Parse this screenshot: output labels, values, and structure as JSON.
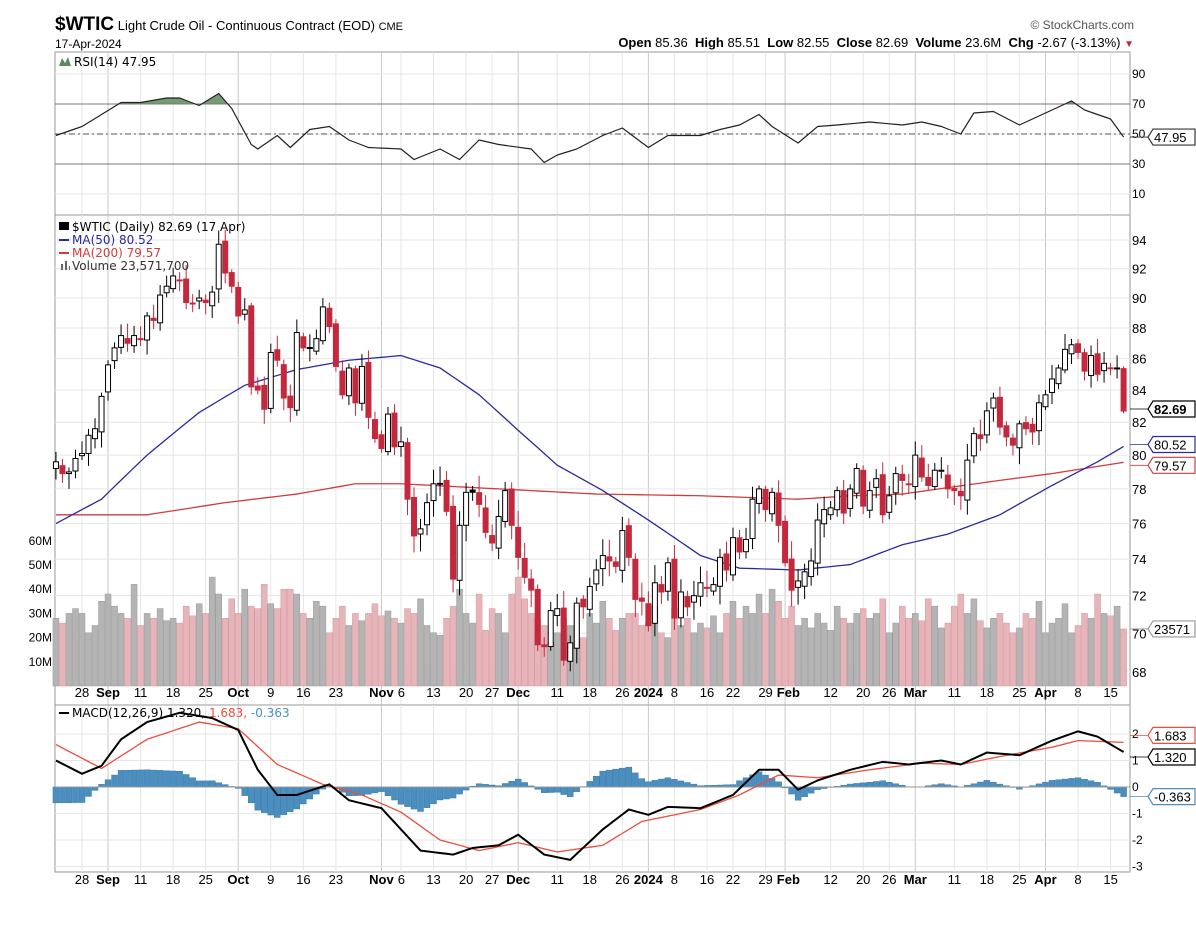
{
  "header": {
    "symbol": "$WTIC",
    "name": "Light Crude Oil - Continuous Contract (EOD)",
    "exchange": "CME",
    "date": "17-Apr-2024",
    "copyright": "© StockCharts.com",
    "open_label": "Open",
    "open": "85.36",
    "high_label": "High",
    "high": "85.51",
    "low_label": "Low",
    "low": "82.55",
    "close_label": "Close",
    "close": "82.69",
    "volume_label": "Volume",
    "volume": "23.6M",
    "chg_label": "Chg",
    "chg": "-2.67 (-3.13%)",
    "chg_icon": "triangle-down-icon"
  },
  "legends": {
    "rsi": "RSI(14) 47.95",
    "price": "$WTIC (Daily) 82.69 (17 Apr)",
    "ma50": "MA(50) 80.52",
    "ma200": "MA(200) 79.57",
    "volume": "Volume 23,571,700",
    "macd": "MACD(12,26,9)",
    "macd_val": "1.320",
    "signal_val": "1.683",
    "hist_val": "-0.363"
  },
  "colors": {
    "up": "#000000",
    "down": "#c4283c",
    "ma50": "#2a2a9c",
    "ma200": "#d23c3c",
    "vol_up": "#b4b4b4",
    "vol_down": "#e6b4b9",
    "hist": "#4a8fc0",
    "rsi_fill": "#5e8a5e",
    "macd": "#000000",
    "signal": "#ee4c3c"
  },
  "chart_data": {
    "type": "candlestick",
    "price_scale": "log",
    "price_ylim": [
      67,
      95
    ],
    "price_ticks": [
      94,
      92,
      90,
      88,
      86,
      84,
      82,
      80,
      78,
      76,
      74,
      72,
      70,
      68
    ],
    "volume_ticks": [
      {
        "v": 60,
        "label": "60M"
      },
      {
        "v": 50,
        "label": "50M"
      },
      {
        "v": 40,
        "label": "40M"
      },
      {
        "v": 30,
        "label": "30M"
      },
      {
        "v": 20,
        "label": "20M"
      },
      {
        "v": 10,
        "label": "10M"
      }
    ],
    "rsi_ticks": [
      90,
      70,
      50,
      30,
      10
    ],
    "macd_ticks": [
      {
        "v": 2,
        "label": "2"
      },
      {
        "v": 1,
        "label": "1"
      },
      {
        "v": 0,
        "label": "0"
      },
      {
        "v": -1,
        "label": "-1"
      },
      {
        "v": -2,
        "label": "-2"
      },
      {
        "v": -3,
        "label": "-3"
      }
    ],
    "x_ticks": [
      {
        "label": "28",
        "i": 4
      },
      {
        "label": "Sep",
        "i": 8,
        "major": true
      },
      {
        "label": "11",
        "i": 13
      },
      {
        "label": "18",
        "i": 18
      },
      {
        "label": "25",
        "i": 23
      },
      {
        "label": "Oct",
        "i": 28,
        "major": true
      },
      {
        "label": "9",
        "i": 33
      },
      {
        "label": "16",
        "i": 38
      },
      {
        "label": "23",
        "i": 43
      },
      {
        "label": "Nov",
        "i": 50,
        "major": true
      },
      {
        "label": "6",
        "i": 53
      },
      {
        "label": "13",
        "i": 58
      },
      {
        "label": "20",
        "i": 63
      },
      {
        "label": "27",
        "i": 67
      },
      {
        "label": "Dec",
        "i": 71,
        "major": true
      },
      {
        "label": "11",
        "i": 77
      },
      {
        "label": "18",
        "i": 82
      },
      {
        "label": "26",
        "i": 87
      },
      {
        "label": "2024",
        "i": 91,
        "major": true
      },
      {
        "label": "8",
        "i": 95
      },
      {
        "label": "16",
        "i": 100
      },
      {
        "label": "22",
        "i": 104
      },
      {
        "label": "29",
        "i": 109
      },
      {
        "label": "Feb",
        "i": 112,
        "major": true
      },
      {
        "label": "12",
        "i": 119
      },
      {
        "label": "20",
        "i": 124
      },
      {
        "label": "26",
        "i": 128
      },
      {
        "label": "Mar",
        "i": 132,
        "major": true
      },
      {
        "label": "11",
        "i": 138
      },
      {
        "label": "18",
        "i": 143
      },
      {
        "label": "25",
        "i": 148
      },
      {
        "label": "Apr",
        "i": 152,
        "major": true
      },
      {
        "label": "8",
        "i": 157
      },
      {
        "label": "15",
        "i": 162
      }
    ],
    "close": [
      79.6,
      78.9,
      79.0,
      79.8,
      80.1,
      81.2,
      81.6,
      83.6,
      85.6,
      86.7,
      87.5,
      87.0,
      87.5,
      87.3,
      88.8,
      88.5,
      90.2,
      90.8,
      91.5,
      91.2,
      89.7,
      89.6,
      90.0,
      89.7,
      90.4,
      93.7,
      91.7,
      90.8,
      88.8,
      89.2,
      84.2,
      84.0,
      82.8,
      86.4,
      85.9,
      83.5,
      82.9,
      87.7,
      86.7,
      86.7,
      87.3,
      89.4,
      88.1,
      85.5,
      83.7,
      85.4,
      83.2,
      85.5,
      82.3,
      81.0,
      80.4,
      82.5,
      80.5,
      80.8,
      77.4,
      75.3,
      75.7,
      77.2,
      78.3,
      78.3,
      76.7,
      72.9,
      75.9,
      77.8,
      77.8,
      77.1,
      75.5,
      74.9,
      76.4,
      77.9,
      75.9,
      74.1,
      73.0,
      72.3,
      69.4,
      69.3,
      71.2,
      71.3,
      68.6,
      69.5,
      71.6,
      71.4,
      72.5,
      73.4,
      74.2,
      73.9,
      73.6,
      75.6,
      74.1,
      71.8,
      71.7,
      70.4,
      72.7,
      72.2,
      73.8,
      70.8,
      72.2,
      71.4,
      72.0,
      72.7,
      72.4,
      72.6,
      74.1,
      73.4,
      75.2,
      74.4,
      75.1,
      77.4,
      78.0,
      76.8,
      77.8,
      75.9,
      73.8,
      72.3,
      72.8,
      73.3,
      73.9,
      76.2,
      76.8,
      76.9,
      77.9,
      76.6,
      78.0,
      79.2,
      77.0,
      77.9,
      78.6,
      76.5,
      77.6,
      78.9,
      78.5,
      78.3,
      80.0,
      78.7,
      78.2,
      79.1,
      79.1,
      78.0,
      77.9,
      77.6,
      79.7,
      81.3,
      81.0,
      82.7,
      83.5,
      81.7,
      81.1,
      80.6,
      81.9,
      81.6,
      81.4,
      83.2,
      83.7,
      84.7,
      85.4,
      86.6,
      86.9,
      86.4,
      85.2,
      86.2,
      85.0,
      85.7,
      85.4,
      85.4,
      82.69
    ],
    "last_ohlc": {
      "open": 85.36,
      "high": 85.51,
      "low": 82.55,
      "close": 82.69
    },
    "volume_m": [
      28,
      26,
      30,
      32,
      30,
      22,
      25,
      35,
      38,
      33,
      30,
      28,
      42,
      25,
      30,
      28,
      32,
      27,
      28,
      26,
      33,
      29,
      34,
      30,
      45,
      38,
      28,
      36,
      30,
      40,
      33,
      32,
      42,
      34,
      32,
      40,
      40,
      38,
      30,
      28,
      35,
      33,
      22,
      28,
      33,
      25,
      30,
      27,
      30,
      34,
      29,
      31,
      28,
      26,
      32,
      30,
      36,
      25,
      22,
      21,
      28,
      33,
      40,
      30,
      26,
      38,
      23,
      32,
      30,
      22,
      38,
      45,
      36,
      30,
      28,
      25,
      18,
      22,
      28,
      25,
      33,
      20,
      30,
      26,
      35,
      28,
      23,
      28,
      30,
      30,
      25,
      26,
      33,
      22,
      20,
      32,
      25,
      28,
      22,
      26,
      24,
      29,
      22,
      30,
      35,
      28,
      33,
      30,
      38,
      30,
      40,
      35,
      28,
      33,
      25,
      28,
      24,
      30,
      26,
      23,
      33,
      28,
      26,
      30,
      32,
      28,
      30,
      36,
      22,
      26,
      33,
      28,
      30,
      27,
      36,
      33,
      24,
      26,
      33,
      38,
      30,
      36,
      27,
      24,
      28,
      30,
      26,
      22,
      24,
      30,
      28,
      35,
      22,
      26,
      28,
      34,
      22,
      25,
      30,
      28,
      38,
      30,
      29,
      33,
      23.57
    ],
    "ma50": [
      [
        0,
        76.0
      ],
      [
        7,
        77.4
      ],
      [
        14,
        80.0
      ],
      [
        22,
        82.6
      ],
      [
        29,
        84.3
      ],
      [
        37,
        85.3
      ],
      [
        45,
        85.9
      ],
      [
        53,
        86.2
      ],
      [
        59,
        85.4
      ],
      [
        65,
        83.7
      ],
      [
        71,
        81.5
      ],
      [
        77,
        79.4
      ],
      [
        84,
        77.9
      ],
      [
        91,
        76.2
      ],
      [
        99,
        74.2
      ],
      [
        105,
        73.5
      ],
      [
        114,
        73.4
      ],
      [
        122,
        73.7
      ],
      [
        130,
        74.8
      ],
      [
        137,
        75.4
      ],
      [
        145,
        76.5
      ],
      [
        153,
        78.2
      ],
      [
        160,
        79.6
      ],
      [
        164,
        80.52
      ]
    ],
    "ma200": [
      [
        0,
        76.5
      ],
      [
        14,
        76.5
      ],
      [
        26,
        77.2
      ],
      [
        37,
        77.7
      ],
      [
        46,
        78.3
      ],
      [
        53,
        78.3
      ],
      [
        68,
        78.0
      ],
      [
        83,
        77.7
      ],
      [
        99,
        77.6
      ],
      [
        114,
        77.4
      ],
      [
        122,
        77.6
      ],
      [
        130,
        77.7
      ],
      [
        145,
        78.5
      ],
      [
        153,
        78.9
      ],
      [
        164,
        79.57
      ]
    ],
    "rsi": [
      [
        0,
        49
      ],
      [
        4,
        55
      ],
      [
        7,
        63
      ],
      [
        10,
        71
      ],
      [
        13,
        71
      ],
      [
        17,
        74
      ],
      [
        19,
        74
      ],
      [
        22,
        69
      ],
      [
        25,
        77
      ],
      [
        27,
        67
      ],
      [
        30,
        43
      ],
      [
        31,
        40
      ],
      [
        34,
        49
      ],
      [
        36,
        41
      ],
      [
        39,
        53
      ],
      [
        42,
        55
      ],
      [
        45,
        46
      ],
      [
        48,
        41
      ],
      [
        53,
        40
      ],
      [
        55,
        33
      ],
      [
        59,
        40
      ],
      [
        62,
        33
      ],
      [
        65,
        46
      ],
      [
        68,
        43
      ],
      [
        73,
        40
      ],
      [
        75,
        31
      ],
      [
        77,
        36
      ],
      [
        80,
        40
      ],
      [
        84,
        49
      ],
      [
        87,
        54
      ],
      [
        91,
        41
      ],
      [
        94,
        49
      ],
      [
        99,
        49
      ],
      [
        102,
        53
      ],
      [
        105,
        56
      ],
      [
        108,
        63
      ],
      [
        110,
        55
      ],
      [
        114,
        44
      ],
      [
        117,
        55
      ],
      [
        120,
        56
      ],
      [
        125,
        58
      ],
      [
        130,
        56
      ],
      [
        133,
        58
      ],
      [
        136,
        55
      ],
      [
        139,
        50
      ],
      [
        141,
        64
      ],
      [
        144,
        65
      ],
      [
        148,
        56
      ],
      [
        153,
        66
      ],
      [
        156,
        72
      ],
      [
        158,
        66
      ],
      [
        162,
        60
      ],
      [
        164,
        47.95
      ]
    ],
    "macd": [
      [
        0,
        1.0
      ],
      [
        4,
        0.5
      ],
      [
        7,
        0.8
      ],
      [
        10,
        1.8
      ],
      [
        14,
        2.45
      ],
      [
        19,
        2.8
      ],
      [
        24,
        2.6
      ],
      [
        28,
        2.15
      ],
      [
        31,
        0.65
      ],
      [
        34,
        -0.3
      ],
      [
        37,
        -0.3
      ],
      [
        42,
        0.1
      ],
      [
        45,
        -0.5
      ],
      [
        50,
        -0.8
      ],
      [
        53,
        -1.6
      ],
      [
        56,
        -2.4
      ],
      [
        61,
        -2.55
      ],
      [
        64,
        -2.3
      ],
      [
        68,
        -2.2
      ],
      [
        71,
        -1.8
      ],
      [
        75,
        -2.55
      ],
      [
        79,
        -2.75
      ],
      [
        84,
        -1.6
      ],
      [
        88,
        -0.85
      ],
      [
        91,
        -1.05
      ],
      [
        94,
        -0.75
      ],
      [
        99,
        -0.8
      ],
      [
        104,
        -0.3
      ],
      [
        108,
        0.65
      ],
      [
        111,
        0.65
      ],
      [
        114,
        -0.1
      ],
      [
        117,
        0.25
      ],
      [
        122,
        0.65
      ],
      [
        127,
        0.95
      ],
      [
        131,
        0.85
      ],
      [
        136,
        1.0
      ],
      [
        139,
        0.85
      ],
      [
        143,
        1.3
      ],
      [
        148,
        1.2
      ],
      [
        153,
        1.75
      ],
      [
        157,
        2.1
      ],
      [
        160,
        1.9
      ],
      [
        164,
        1.32
      ]
    ],
    "signal": [
      [
        0,
        1.6
      ],
      [
        7,
        0.7
      ],
      [
        14,
        1.8
      ],
      [
        22,
        2.45
      ],
      [
        28,
        2.2
      ],
      [
        34,
        0.85
      ],
      [
        41,
        0.1
      ],
      [
        47,
        -0.3
      ],
      [
        53,
        -0.95
      ],
      [
        59,
        -2.0
      ],
      [
        65,
        -2.4
      ],
      [
        71,
        -2.1
      ],
      [
        77,
        -2.45
      ],
      [
        84,
        -2.2
      ],
      [
        90,
        -1.3
      ],
      [
        99,
        -0.85
      ],
      [
        105,
        -0.3
      ],
      [
        111,
        0.45
      ],
      [
        117,
        0.35
      ],
      [
        125,
        0.65
      ],
      [
        133,
        0.9
      ],
      [
        139,
        0.85
      ],
      [
        145,
        1.15
      ],
      [
        153,
        1.5
      ],
      [
        157,
        1.75
      ],
      [
        164,
        1.683
      ]
    ],
    "badges": {
      "price": "82.69",
      "ma50": "80.52",
      "ma200": "79.57",
      "volume": "23571",
      "rsi": "47.95",
      "macd": "1.320",
      "signal": "1.683",
      "hist": "-0.363"
    }
  }
}
